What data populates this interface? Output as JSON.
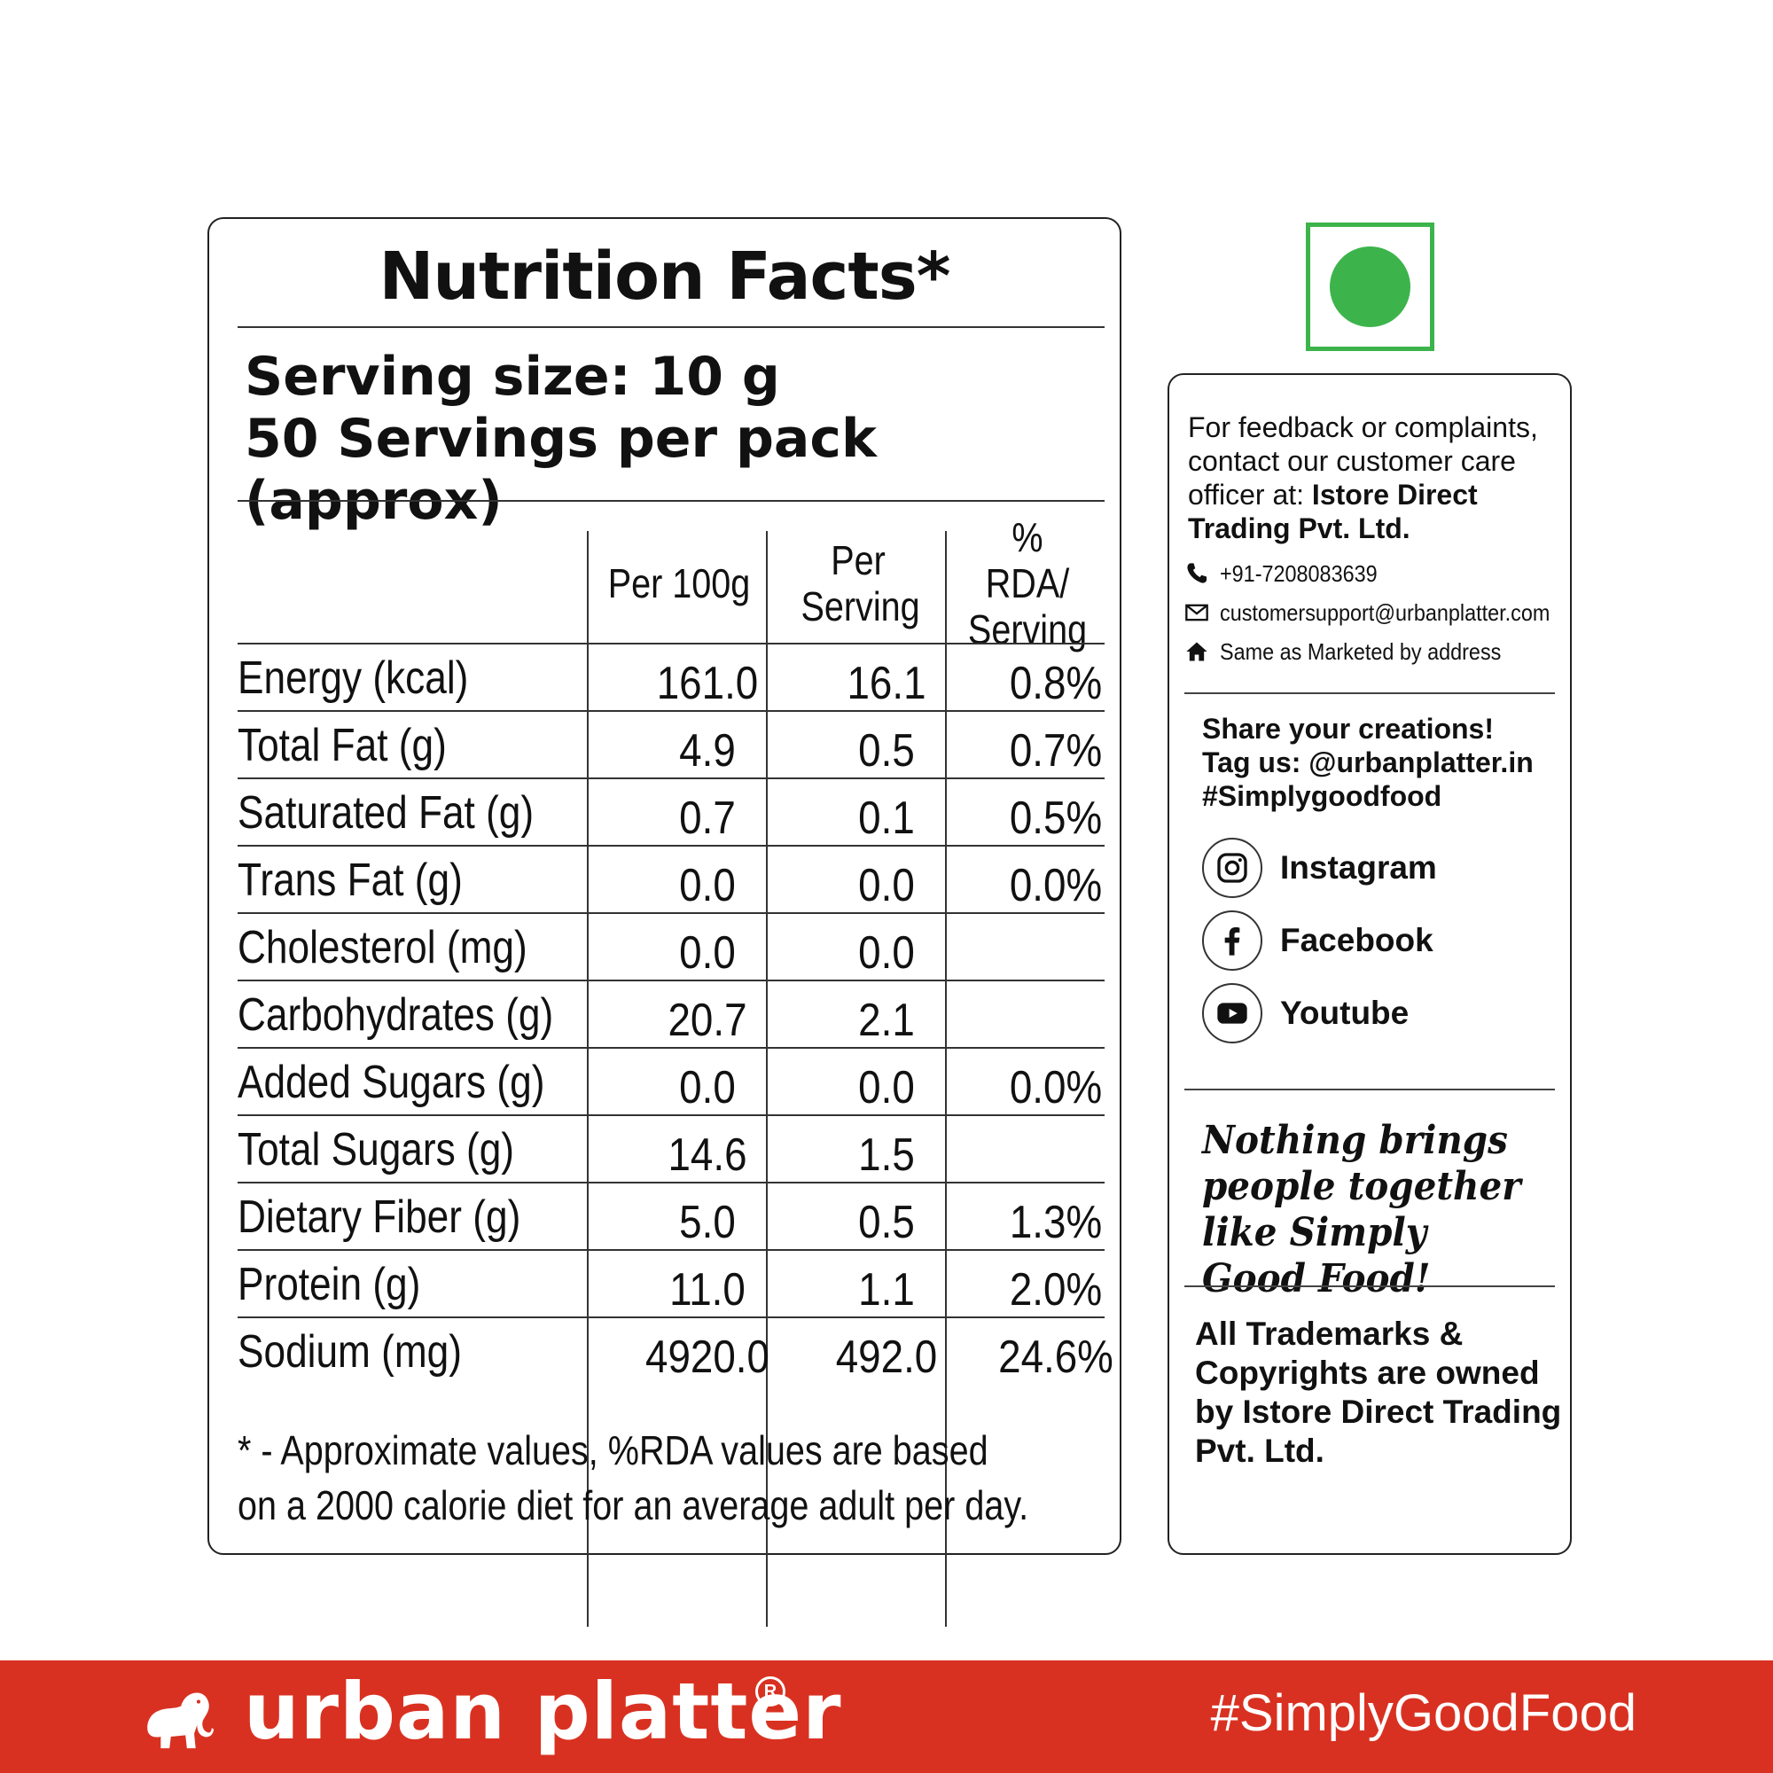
{
  "nutrition": {
    "title": "Nutrition Facts*",
    "serving_size": "Serving size: 10 g",
    "servings_per_pack": "50 Servings per pack (approx)",
    "headers": [
      "Per 100g",
      "Per Serving",
      "% RDA/ Serving"
    ],
    "rows": [
      {
        "nutrient": "Energy (kcal)",
        "per100g": "161.0",
        "per_serving": "16.1",
        "rda": "0.8%"
      },
      {
        "nutrient": "Total Fat (g)",
        "per100g": "4.9",
        "per_serving": "0.5",
        "rda": "0.7%"
      },
      {
        "nutrient": "Saturated Fat (g)",
        "per100g": "0.7",
        "per_serving": "0.1",
        "rda": "0.5%"
      },
      {
        "nutrient": "Trans Fat (g)",
        "per100g": "0.0",
        "per_serving": "0.0",
        "rda": "0.0%"
      },
      {
        "nutrient": "Cholesterol (mg)",
        "per100g": "0.0",
        "per_serving": "0.0",
        "rda": ""
      },
      {
        "nutrient": "Carbohydrates (g)",
        "per100g": "20.7",
        "per_serving": "2.1",
        "rda": ""
      },
      {
        "nutrient": "Added Sugars (g)",
        "per100g": "0.0",
        "per_serving": "0.0",
        "rda": "0.0%"
      },
      {
        "nutrient": "Total Sugars (g)",
        "per100g": "14.6",
        "per_serving": "1.5",
        "rda": ""
      },
      {
        "nutrient": "Dietary Fiber (g)",
        "per100g": "5.0",
        "per_serving": "0.5",
        "rda": "1.3%"
      },
      {
        "nutrient": "Protein (g)",
        "per100g": "11.0",
        "per_serving": "1.1",
        "rda": "2.0%"
      },
      {
        "nutrient": "Sodium (mg)",
        "per100g": "4920.0",
        "per_serving": "492.0",
        "rda": "24.6%"
      }
    ],
    "footnote_line1": "* - Approximate values, %RDA values are based",
    "footnote_line2": "on a 2000 calorie diet for an average adult per day."
  },
  "veg_mark": {
    "color": "#3cb44b"
  },
  "info": {
    "feedback_text": "For feedback or complaints, contact our customer care officer at: ",
    "feedback_company": "Istore Direct Trading Pvt. Ltd.",
    "phone": "+91-7208083639",
    "email": "customersupport@urbanplatter.com",
    "address": "Same as Marketed by address",
    "share_line1": "Share your creations!",
    "share_line2": "Tag us: @urbanplatter.in",
    "share_line3": "#Simplygoodfood",
    "social": [
      {
        "label": "Instagram",
        "icon": "instagram-icon"
      },
      {
        "label": "Facebook",
        "icon": "facebook-icon"
      },
      {
        "label": "Youtube",
        "icon": "youtube-icon"
      }
    ],
    "tagline": "Nothing brings people together like Simply Good Food!",
    "trademark": "All Trademarks & Copyrights are owned by Istore Direct Trading Pvt. Ltd."
  },
  "footer": {
    "brand": "urban platter",
    "registered": "R",
    "hashtag": "#SimplyGoodFood",
    "bg_color": "#d93121"
  }
}
